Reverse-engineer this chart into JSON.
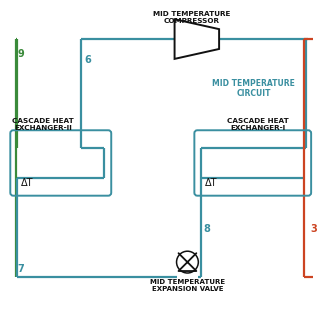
{
  "bg_color": "#ffffff",
  "teal": "#3A8FA0",
  "green": "#3A8A3A",
  "orange": "#CC4422",
  "dark": "#111111",
  "title_compressor": "MID TEMPERATURE\nCOMPRESSOR",
  "title_circuit": "MID TEMPERATURE\nCIRCUIT",
  "title_valve": "MID TEMPERATURE\nEXPANSION VALVE",
  "title_hx2": "CASCADE HEAT\nEXCHANGER-II",
  "title_hx1": "CASCADE HEAT\nEXCHANGER-I",
  "label_dt": "ΔT"
}
